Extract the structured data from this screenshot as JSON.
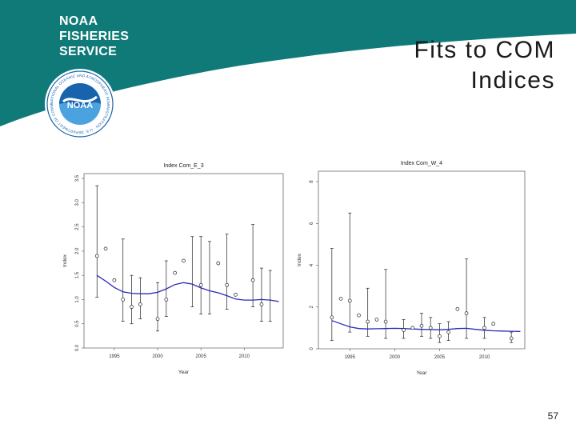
{
  "header": {
    "logo_lines": [
      "NOAA",
      "FISHERIES",
      "SERVICE"
    ],
    "seal_text": "NOAA",
    "seal_ring_text": "NATIONAL OCEANIC AND ATMOSPHERIC ADMINISTRATION · U.S. DEPARTMENT OF COMMERCE",
    "colors": {
      "teal": "#0f7a78",
      "seal_blue": "#1763ae",
      "seal_light": "#4aa3df"
    }
  },
  "slide": {
    "title_lines": [
      "Fits to COM",
      "Indices"
    ],
    "page_number": "57"
  },
  "chart_data": [
    {
      "type": "scatter",
      "title": "Index Com_E_3",
      "xlabel": "Year",
      "ylabel": "Index",
      "xlim": [
        1991.5,
        2014.5
      ],
      "ylim": [
        0,
        3.6
      ],
      "xticks": [
        1995,
        2000,
        2005,
        2010
      ],
      "yticks": [
        0.0,
        0.5,
        1.0,
        1.5,
        2.0,
        2.5,
        3.0,
        3.5
      ],
      "ytick_labels": [
        "0.0",
        "0.5",
        "1.0",
        "1.5",
        "2.0",
        "2.5",
        "3.0",
        "3.5"
      ],
      "x": [
        1993,
        1994,
        1995,
        1996,
        1997,
        1998,
        1999,
        2000,
        2001,
        2002,
        2003,
        2004,
        2005,
        2006,
        2007,
        2008,
        2009,
        2010,
        2011,
        2012,
        2013,
        2014
      ],
      "observed": [
        1.9,
        2.05,
        1.4,
        1.0,
        0.85,
        0.9,
        null,
        0.6,
        1.0,
        1.55,
        1.8,
        null,
        1.3,
        null,
        1.75,
        1.3,
        1.1,
        null,
        1.4,
        0.9,
        null,
        null
      ],
      "error_low": [
        1.05,
        null,
        null,
        0.55,
        0.5,
        0.6,
        null,
        0.35,
        0.65,
        null,
        null,
        0.85,
        0.7,
        0.7,
        null,
        0.8,
        null,
        null,
        0.85,
        0.55,
        0.55,
        null
      ],
      "error_high": [
        3.35,
        null,
        null,
        2.25,
        1.5,
        1.45,
        null,
        1.35,
        1.8,
        null,
        null,
        2.3,
        2.3,
        2.2,
        null,
        2.35,
        null,
        null,
        2.55,
        1.65,
        1.6,
        null
      ],
      "fit": [
        1.5,
        1.38,
        1.25,
        1.16,
        1.13,
        1.12,
        1.12,
        1.15,
        1.22,
        1.31,
        1.35,
        1.32,
        1.24,
        1.18,
        1.14,
        1.08,
        1.01,
        0.99,
        0.99,
        1.0,
        0.99,
        0.96
      ],
      "fit_color": "#2a2ab8"
    },
    {
      "type": "scatter",
      "title": "Index Com_W_4",
      "xlabel": "Year",
      "ylabel": "Index",
      "xlim": [
        1991.5,
        2014.5
      ],
      "ylim": [
        0,
        8.5
      ],
      "xticks": [
        1995,
        2000,
        2005,
        2010
      ],
      "yticks": [
        0,
        2,
        4,
        6,
        8
      ],
      "ytick_labels": [
        "0",
        "2",
        "4",
        "6",
        "8"
      ],
      "x": [
        1993,
        1994,
        1995,
        1996,
        1997,
        1998,
        1999,
        2000,
        2001,
        2002,
        2003,
        2004,
        2005,
        2006,
        2007,
        2008,
        2009,
        2010,
        2011,
        2012,
        2013,
        2014
      ],
      "observed": [
        1.5,
        2.4,
        2.3,
        1.6,
        1.3,
        1.4,
        1.3,
        null,
        0.9,
        1.0,
        1.1,
        1.0,
        0.6,
        0.8,
        1.9,
        1.7,
        null,
        1.0,
        1.2,
        null,
        0.5,
        null
      ],
      "error_low": [
        0.4,
        null,
        0.8,
        null,
        0.6,
        null,
        0.5,
        null,
        0.5,
        null,
        0.6,
        0.5,
        0.3,
        0.4,
        null,
        0.5,
        null,
        0.5,
        null,
        null,
        0.3,
        null
      ],
      "error_high": [
        4.8,
        null,
        6.5,
        null,
        2.9,
        null,
        3.8,
        null,
        1.4,
        null,
        1.7,
        1.5,
        1.2,
        1.3,
        null,
        4.3,
        null,
        1.5,
        null,
        null,
        0.8,
        null
      ],
      "fit": [
        1.35,
        1.2,
        1.05,
        0.97,
        0.95,
        0.96,
        0.97,
        0.98,
        0.97,
        0.95,
        0.93,
        0.92,
        0.91,
        0.93,
        0.97,
        0.98,
        0.93,
        0.89,
        0.86,
        0.85,
        0.84,
        0.83
      ],
      "fit_color": "#2a2ab8"
    }
  ]
}
